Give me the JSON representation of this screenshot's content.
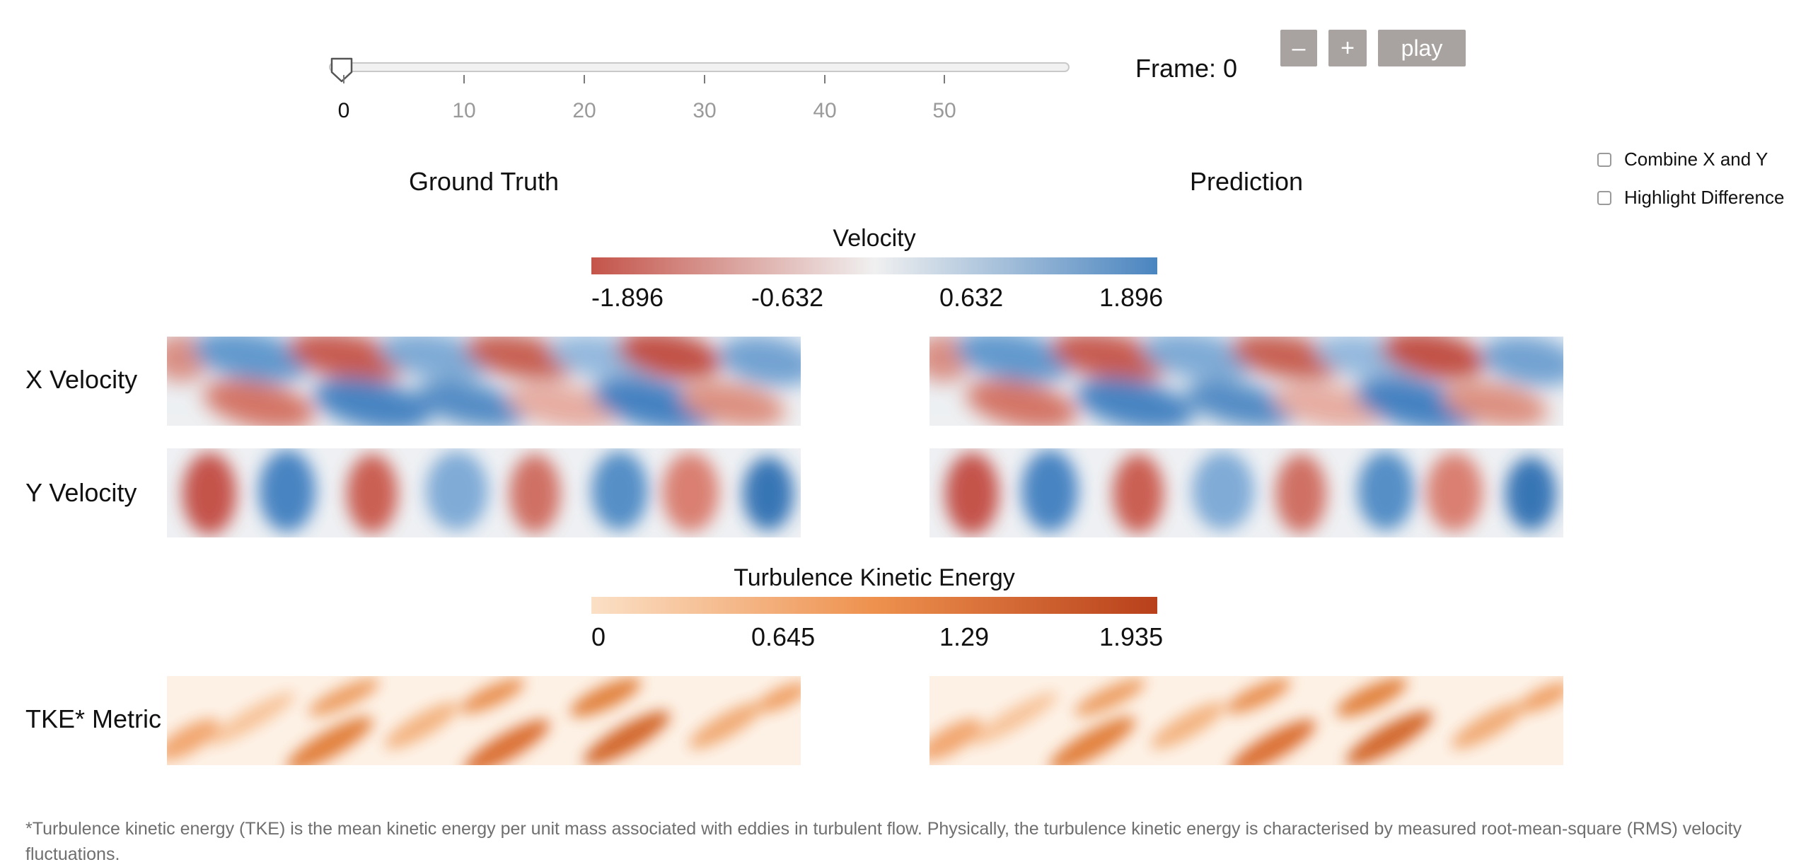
{
  "slider": {
    "min": 0,
    "max": 59,
    "value": 0,
    "tick_labels": [
      "0",
      "10",
      "20",
      "30",
      "40",
      "50"
    ]
  },
  "frame": {
    "label": "Frame:",
    "value": "0"
  },
  "controls": {
    "minus": "–",
    "plus": "+",
    "play": "play"
  },
  "options": {
    "combine": {
      "label": "Combine X and Y",
      "checked": false
    },
    "highlight": {
      "label": "Highlight Difference",
      "checked": false
    }
  },
  "columns": {
    "left": "Ground Truth",
    "right": "Prediction"
  },
  "velocity_legend": {
    "title": "Velocity",
    "labels": [
      "-1.896",
      "-0.632",
      "0.632",
      "1.896"
    ],
    "colors": [
      "#c4544a",
      "#f0f0f0",
      "#4a85c0"
    ]
  },
  "tke_legend": {
    "title": "Turbulence Kinetic Energy",
    "labels": [
      "0",
      "0.645",
      "1.29",
      "1.935"
    ],
    "colors": [
      "#fbe0c6",
      "#ee914e",
      "#b8401b"
    ]
  },
  "rows": {
    "x_velocity": "X Velocity",
    "y_velocity": "Y Velocity",
    "tke": "TKE* Metric"
  },
  "footnote": "*Turbulence kinetic energy (TKE) is the mean kinetic energy per unit mass associated with eddies in turbulent flow. Physically, the turbulence kinetic energy is characterised by measured root-mean-square (RMS) velocity fluctuations."
}
